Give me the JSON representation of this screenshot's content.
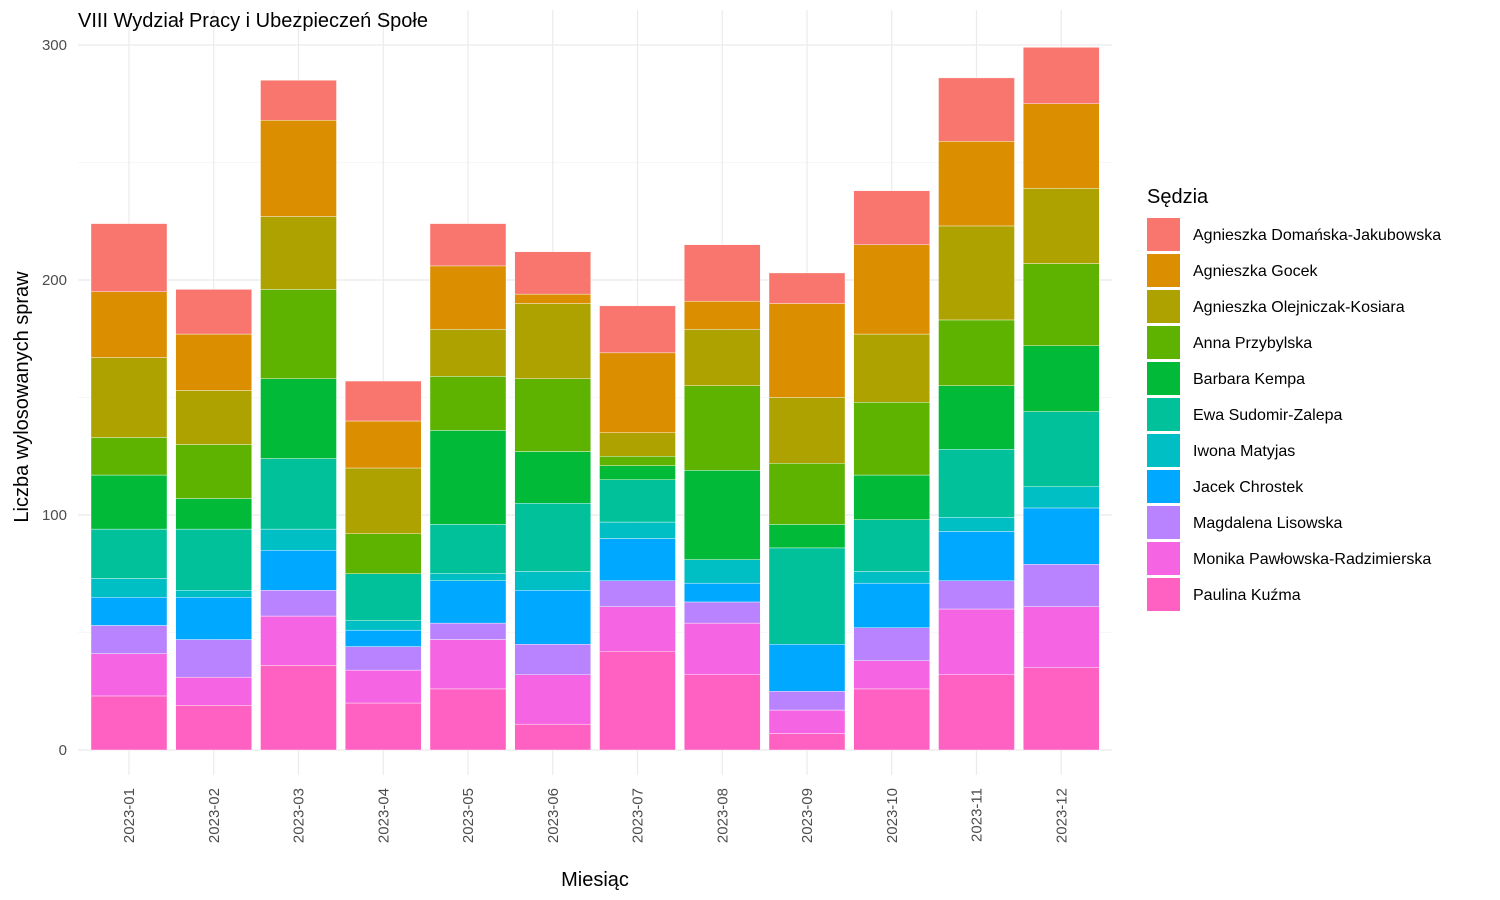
{
  "chart_data": {
    "type": "bar",
    "stacked": true,
    "title": "VIII Wydział Pracy i Ubezpieczeń Społe",
    "xlabel": "Miesiąc",
    "ylabel": "Liczba wylosowanych spraw",
    "ylim": [
      0,
      300
    ],
    "yticks": [
      "0",
      "100",
      "200",
      "300"
    ],
    "grid": true,
    "legend_title": "Sędzia",
    "legend_position": "right",
    "categories": [
      "2023-01",
      "2023-02",
      "2023-03",
      "2023-04",
      "2023-05",
      "2023-06",
      "2023-07",
      "2023-08",
      "2023-09",
      "2023-10",
      "2023-11",
      "2023-12"
    ],
    "series": [
      {
        "name": "Paulina Kuźma",
        "color": "#FF61C3",
        "values": [
          23,
          19,
          36,
          20,
          26,
          11,
          42,
          32,
          7,
          26,
          32,
          35
        ]
      },
      {
        "name": "Monika Pawłowska-Radzimierska",
        "color": "#F564E3",
        "values": [
          18,
          12,
          21,
          14,
          21,
          21,
          19,
          22,
          10,
          12,
          28,
          26
        ]
      },
      {
        "name": "Magdalena Lisowska",
        "color": "#B983FF",
        "values": [
          12,
          16,
          11,
          10,
          7,
          13,
          11,
          9,
          8,
          14,
          12,
          18
        ]
      },
      {
        "name": "Jacek Chrostek",
        "color": "#00A9FF",
        "values": [
          12,
          18,
          17,
          7,
          18,
          23,
          18,
          8,
          20,
          19,
          21,
          24
        ]
      },
      {
        "name": "Iwona Matyjas",
        "color": "#00BFC4",
        "values": [
          8,
          3,
          9,
          4,
          3,
          8,
          7,
          10,
          0,
          5,
          6,
          9
        ]
      },
      {
        "name": "Ewa Sudomir-Zalepa",
        "color": "#00C19A",
        "values": [
          21,
          26,
          30,
          20,
          21,
          29,
          18,
          0,
          41,
          22,
          29,
          32
        ]
      },
      {
        "name": "Barbara Kempa",
        "color": "#00BA38",
        "values": [
          23,
          13,
          34,
          0,
          40,
          22,
          6,
          38,
          10,
          19,
          27,
          28
        ]
      },
      {
        "name": "Anna Przybylska",
        "color": "#5EB300",
        "values": [
          16,
          23,
          38,
          17,
          23,
          31,
          4,
          36,
          26,
          31,
          28,
          35
        ]
      },
      {
        "name": "Agnieszka Olejniczak-Kosiara",
        "color": "#AEA200",
        "values": [
          34,
          23,
          31,
          28,
          20,
          32,
          10,
          24,
          28,
          29,
          40,
          32
        ]
      },
      {
        "name": "Agnieszka Gocek",
        "color": "#DB8E00",
        "values": [
          28,
          24,
          41,
          20,
          27,
          4,
          34,
          12,
          40,
          38,
          36,
          36
        ]
      },
      {
        "name": "Agnieszka Domańska-Jakubowska",
        "color": "#F8766D",
        "values": [
          29,
          19,
          17,
          17,
          18,
          18,
          20,
          24,
          13,
          23,
          27,
          24
        ]
      }
    ],
    "legend_order": [
      "Agnieszka Domańska-Jakubowska",
      "Agnieszka Gocek",
      "Agnieszka Olejniczak-Kosiara",
      "Anna Przybylska",
      "Barbara Kempa",
      "Ewa Sudomir-Zalepa",
      "Iwona Matyjas",
      "Jacek Chrostek",
      "Magdalena Lisowska",
      "Monika Pawłowska-Radzimierska",
      "Paulina Kuźma"
    ]
  }
}
